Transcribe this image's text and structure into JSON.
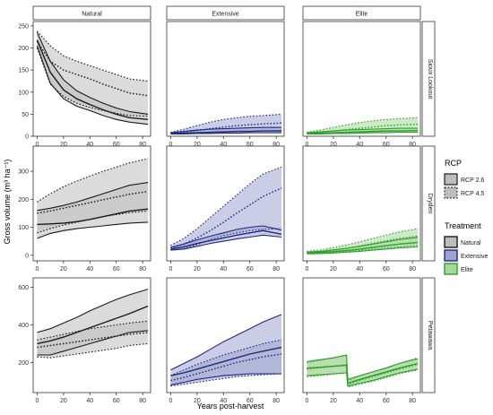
{
  "chart_data": {
    "type": "area",
    "ylabel": "Gross volume (m³ ha⁻¹)",
    "xlabel": "Years post-harvest",
    "columns": [
      "Natural",
      "Extensive",
      "Elite"
    ],
    "rows": [
      "Sioux Lookout",
      "Dryden",
      "Petawawa"
    ],
    "x_ticks": [
      0,
      20,
      40,
      60,
      80
    ],
    "xlim": [
      -3,
      86
    ],
    "grid": false,
    "legend_position": "right",
    "legend": {
      "rcp_title": "RCP",
      "rcp_items": [
        {
          "label": "RCP 2.6",
          "style": "solid"
        },
        {
          "label": "RCP 4.5",
          "style": "dotted"
        }
      ],
      "treatment_title": "Treatment",
      "treatment_items": [
        {
          "label": "Natural",
          "color": "#1a1a1a",
          "fill": "#bdbdbd"
        },
        {
          "label": "Extensive",
          "color": "#1f2a7a",
          "fill": "#9ea4cf"
        },
        {
          "label": "Elite",
          "color": "#2ca02c",
          "fill": "#a8d79a"
        }
      ]
    },
    "row_axes": [
      {
        "ylim": [
          0,
          260
        ],
        "ticks": [
          0,
          50,
          100,
          150,
          200,
          250
        ]
      },
      {
        "ylim": [
          -20,
          390
        ],
        "ticks": [
          0,
          100,
          200,
          300
        ]
      },
      {
        "ylim": [
          40,
          650
        ],
        "ticks": [
          200,
          400,
          600
        ]
      }
    ],
    "panels": [
      {
        "row": 0,
        "col": 0,
        "treatment": "Natural",
        "series": [
          {
            "rcp": "RCP 2.6",
            "x": [
              0,
              10,
              20,
              30,
              40,
              50,
              60,
              70,
              84
            ],
            "mean": [
              218,
              145,
              105,
              85,
              72,
              60,
              50,
              42,
              38
            ],
            "lower": [
              205,
              120,
              85,
              68,
              58,
              47,
              38,
              32,
              27
            ],
            "upper": [
              235,
              170,
              128,
              103,
              88,
              75,
              64,
              56,
              50
            ]
          },
          {
            "rcp": "RCP 4.5",
            "x": [
              0,
              10,
              20,
              30,
              40,
              50,
              60,
              70,
              84
            ],
            "mean": [
              215,
              170,
              150,
              140,
              130,
              118,
              108,
              98,
              92
            ],
            "lower": [
              200,
              118,
              90,
              75,
              65,
              58,
              52,
              47,
              45
            ],
            "upper": [
              238,
              205,
              182,
              170,
              160,
              150,
              140,
              130,
              125
            ]
          }
        ]
      },
      {
        "row": 0,
        "col": 1,
        "treatment": "Extensive",
        "series": [
          {
            "rcp": "RCP 2.6",
            "x": [
              0,
              10,
              20,
              30,
              40,
              50,
              60,
              70,
              84
            ],
            "mean": [
              6,
              7,
              8,
              9,
              10,
              11,
              11,
              12,
              12
            ],
            "lower": [
              5,
              5,
              6,
              6,
              7,
              7,
              8,
              8,
              8
            ],
            "upper": [
              8,
              11,
              14,
              16,
              17,
              18,
              19,
              20,
              20
            ]
          },
          {
            "rcp": "RCP 4.5",
            "x": [
              0,
              10,
              20,
              30,
              40,
              50,
              60,
              70,
              84
            ],
            "mean": [
              6,
              9,
              13,
              17,
              21,
              24,
              26,
              28,
              30
            ],
            "lower": [
              5,
              6,
              7,
              8,
              9,
              10,
              11,
              12,
              13
            ],
            "upper": [
              9,
              16,
              24,
              32,
              38,
              42,
              45,
              47,
              50
            ]
          }
        ]
      },
      {
        "row": 0,
        "col": 2,
        "treatment": "Elite",
        "series": [
          {
            "rcp": "RCP 2.6",
            "x": [
              0,
              10,
              20,
              30,
              40,
              50,
              60,
              70,
              84
            ],
            "mean": [
              6,
              7,
              8,
              9,
              10,
              11,
              12,
              12,
              13
            ],
            "lower": [
              5,
              5,
              6,
              6,
              7,
              8,
              8,
              9,
              9
            ],
            "upper": [
              8,
              10,
              12,
              14,
              15,
              16,
              17,
              18,
              18
            ]
          },
          {
            "rcp": "RCP 4.5",
            "x": [
              0,
              10,
              20,
              30,
              40,
              50,
              60,
              70,
              84
            ],
            "mean": [
              6,
              9,
              12,
              15,
              18,
              21,
              24,
              26,
              27
            ],
            "lower": [
              5,
              6,
              7,
              8,
              9,
              10,
              11,
              12,
              12
            ],
            "upper": [
              9,
              14,
              20,
              26,
              31,
              35,
              38,
              40,
              42
            ]
          }
        ]
      },
      {
        "row": 1,
        "col": 0,
        "treatment": "Natural",
        "series": [
          {
            "rcp": "RCP 2.6",
            "x": [
              0,
              10,
              20,
              30,
              40,
              50,
              60,
              70,
              84
            ],
            "mean": [
              110,
              112,
              115,
              120,
              128,
              138,
              148,
              158,
              165
            ],
            "lower": [
              60,
              78,
              88,
              95,
              100,
              105,
              110,
              115,
              118
            ],
            "upper": [
              160,
              168,
              178,
              190,
              205,
              220,
              235,
              250,
              260
            ]
          },
          {
            "rcp": "RCP 4.5",
            "x": [
              0,
              10,
              20,
              30,
              40,
              50,
              60,
              70,
              84
            ],
            "mean": [
              150,
              158,
              168,
              178,
              188,
              198,
              208,
              218,
              228
            ],
            "lower": [
              80,
              95,
              108,
              118,
              128,
              138,
              145,
              152,
              158
            ],
            "upper": [
              190,
              220,
              245,
              265,
              283,
              300,
              315,
              330,
              345
            ]
          }
        ]
      },
      {
        "row": 1,
        "col": 1,
        "treatment": "Extensive",
        "series": [
          {
            "rcp": "RCP 2.6",
            "x": [
              0,
              10,
              20,
              30,
              40,
              50,
              60,
              70,
              84
            ],
            "mean": [
              22,
              30,
              42,
              52,
              62,
              72,
              80,
              88,
              75
            ],
            "lower": [
              18,
              22,
              32,
              42,
              50,
              58,
              65,
              72,
              65
            ],
            "upper": [
              28,
              40,
              55,
              68,
              80,
              92,
              100,
              105,
              90
            ]
          },
          {
            "rcp": "RCP 4.5",
            "x": [
              0,
              10,
              20,
              30,
              40,
              50,
              60,
              70,
              84
            ],
            "mean": [
              25,
              40,
              62,
              88,
              118,
              150,
              180,
              210,
              240
            ],
            "lower": [
              18,
              24,
              38,
              55,
              70,
              80,
              88,
              92,
              95
            ],
            "upper": [
              35,
              60,
              95,
              135,
              175,
              215,
              255,
              290,
              315
            ]
          }
        ]
      },
      {
        "row": 1,
        "col": 2,
        "treatment": "Elite",
        "series": [
          {
            "rcp": "RCP 2.6",
            "x": [
              0,
              10,
              20,
              30,
              40,
              50,
              60,
              70,
              84
            ],
            "mean": [
              8,
              10,
              13,
              17,
              22,
              28,
              34,
              40,
              46
            ],
            "lower": [
              5,
              6,
              8,
              11,
              14,
              18,
              22,
              26,
              30
            ],
            "upper": [
              11,
              14,
              19,
              25,
              32,
              40,
              48,
              56,
              64
            ]
          },
          {
            "rcp": "RCP 4.5",
            "x": [
              0,
              10,
              20,
              30,
              40,
              50,
              60,
              70,
              84
            ],
            "mean": [
              10,
              13,
              18,
              25,
              33,
              42,
              51,
              60,
              68
            ],
            "lower": [
              6,
              8,
              10,
              13,
              17,
              21,
              26,
              30,
              35
            ],
            "upper": [
              14,
              19,
              27,
              37,
              48,
              60,
              72,
              83,
              95
            ]
          }
        ]
      },
      {
        "row": 2,
        "col": 0,
        "treatment": "Natural",
        "series": [
          {
            "rcp": "RCP 2.6",
            "x": [
              0,
              10,
              20,
              30,
              40,
              50,
              60,
              70,
              84
            ],
            "mean": [
              300,
              315,
              335,
              360,
              385,
              410,
              435,
              460,
              500
            ],
            "lower": [
              240,
              240,
              260,
              280,
              300,
              320,
              340,
              360,
              370
            ],
            "upper": [
              360,
              380,
              410,
              440,
              475,
              505,
              535,
              560,
              590
            ]
          },
          {
            "rcp": "RCP 4.5",
            "x": [
              0,
              10,
              20,
              30,
              40,
              50,
              60,
              70,
              84
            ],
            "mean": [
              280,
              290,
              300,
              310,
              320,
              330,
              340,
              350,
              360
            ],
            "lower": [
              230,
              225,
              235,
              245,
              255,
              265,
              275,
              290,
              300
            ],
            "upper": [
              320,
              335,
              350,
              365,
              380,
              390,
              400,
              410,
              420
            ]
          }
        ]
      },
      {
        "row": 2,
        "col": 1,
        "treatment": "Extensive",
        "series": [
          {
            "rcp": "RCP 2.6",
            "x": [
              0,
              10,
              20,
              30,
              40,
              50,
              60,
              70,
              84
            ],
            "mean": [
              130,
              145,
              165,
              185,
              205,
              225,
              245,
              260,
              280
            ],
            "lower": [
              80,
              95,
              110,
              120,
              130,
              135,
              140,
              140,
              140
            ],
            "upper": [
              160,
              195,
              230,
              270,
              310,
              345,
              380,
              415,
              455
            ]
          },
          {
            "rcp": "RCP 4.5",
            "x": [
              0,
              10,
              20,
              30,
              40,
              50,
              60,
              70,
              84
            ],
            "mean": [
              105,
              120,
              140,
              160,
              180,
              200,
              215,
              230,
              245
            ],
            "lower": [
              75,
              85,
              95,
              105,
              115,
              125,
              130,
              135,
              140
            ],
            "upper": [
              130,
              160,
              190,
              215,
              240,
              260,
              280,
              300,
              320
            ]
          }
        ]
      },
      {
        "row": 2,
        "col": 2,
        "treatment": "Elite",
        "series": [
          {
            "rcp": "RCP 2.6",
            "x": [
              0,
              10,
              20,
              30,
              31,
              40,
              50,
              60,
              70,
              84
            ],
            "mean": [
              170,
              175,
              180,
              185,
              90,
              110,
              130,
              150,
              170,
              195
            ],
            "lower": [
              130,
              135,
              140,
              145,
              75,
              90,
              105,
              125,
              145,
              165
            ],
            "upper": [
              205,
              215,
              225,
              240,
              110,
              130,
              150,
              170,
              195,
              220
            ]
          },
          {
            "rcp": "RCP 4.5",
            "x": [
              0,
              10,
              20,
              30,
              31,
              40,
              50,
              60,
              70,
              84
            ],
            "mean": [
              165,
              172,
              180,
              188,
              85,
              105,
              125,
              145,
              165,
              190
            ],
            "lower": [
              125,
              130,
              138,
              145,
              70,
              85,
              100,
              120,
              140,
              160
            ],
            "upper": [
              200,
              212,
              225,
              238,
              105,
              128,
              150,
              172,
              195,
              225
            ]
          }
        ]
      }
    ]
  }
}
